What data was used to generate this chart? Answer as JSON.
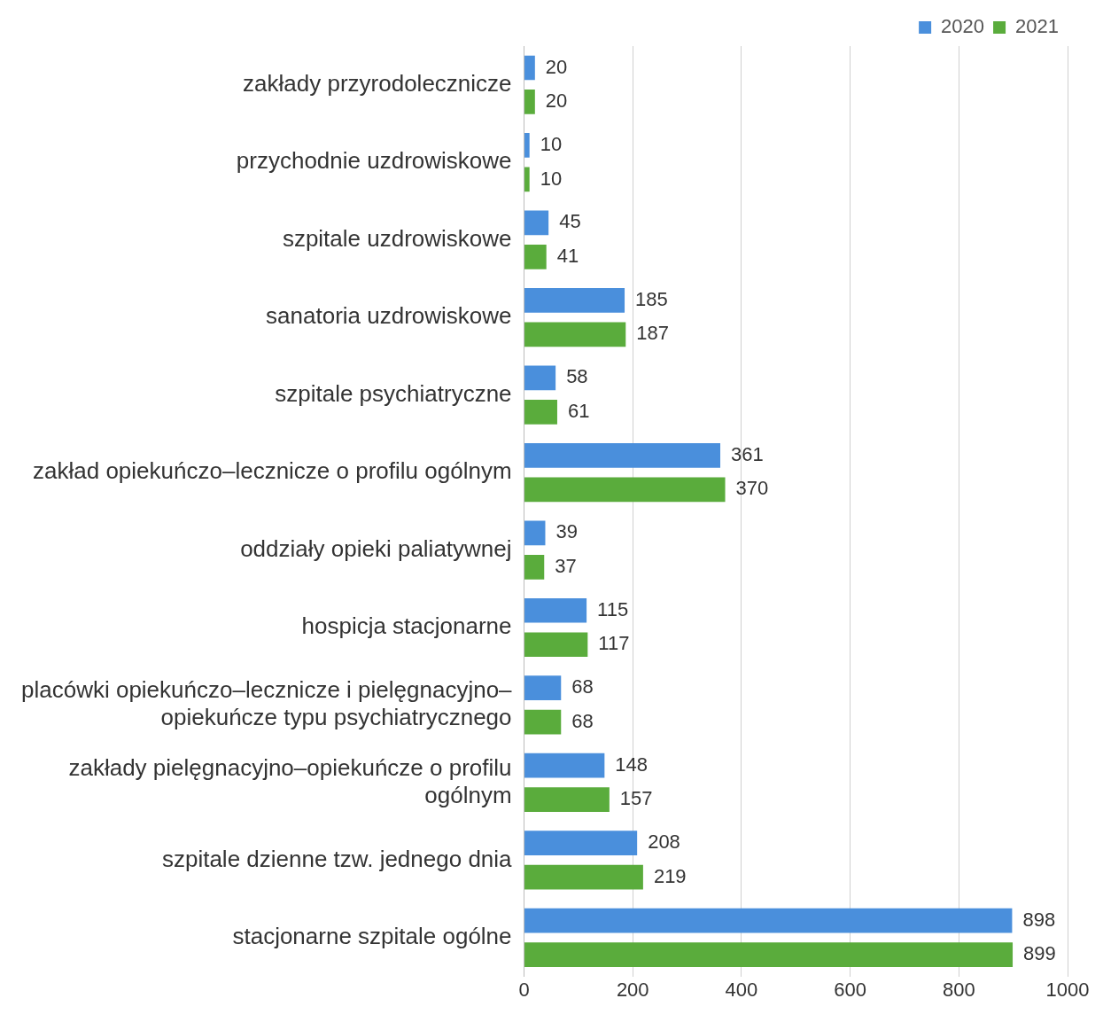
{
  "chart_data": {
    "type": "bar",
    "orientation": "horizontal",
    "categories": [
      "zakłady przyrodolecznicze",
      "przychodnie uzdrowiskowe",
      "szpitale uzdrowiskowe",
      "sanatoria uzdrowiskowe",
      "szpitale psychiatryczne",
      "zakład opiekuńczo–lecznicze o profilu ogólnym",
      "oddziały opieki paliatywnej",
      "hospicja stacjonarne",
      "placówki opiekuńczo–lecznicze i pielęgnacyjno–opiekuńcze typu psychiatrycznego",
      "zakłady pielęgnacyjno–opiekuńcze o profilu ogólnym",
      "szpitale dzienne tzw. jednego dnia",
      "stacjonarne szpitale ogólne"
    ],
    "series": [
      {
        "name": "2020",
        "color": "#4a8fdc",
        "values": [
          20,
          10,
          45,
          185,
          58,
          361,
          39,
          115,
          68,
          148,
          208,
          898
        ]
      },
      {
        "name": "2021",
        "color": "#5aac3c",
        "values": [
          20,
          10,
          41,
          187,
          61,
          370,
          37,
          117,
          68,
          157,
          219,
          899
        ]
      }
    ],
    "xlim": [
      0,
      1000
    ],
    "xticks": [
      0,
      200,
      400,
      600,
      800,
      1000
    ],
    "grid": "x",
    "legend": "top right",
    "data_labels": true
  }
}
